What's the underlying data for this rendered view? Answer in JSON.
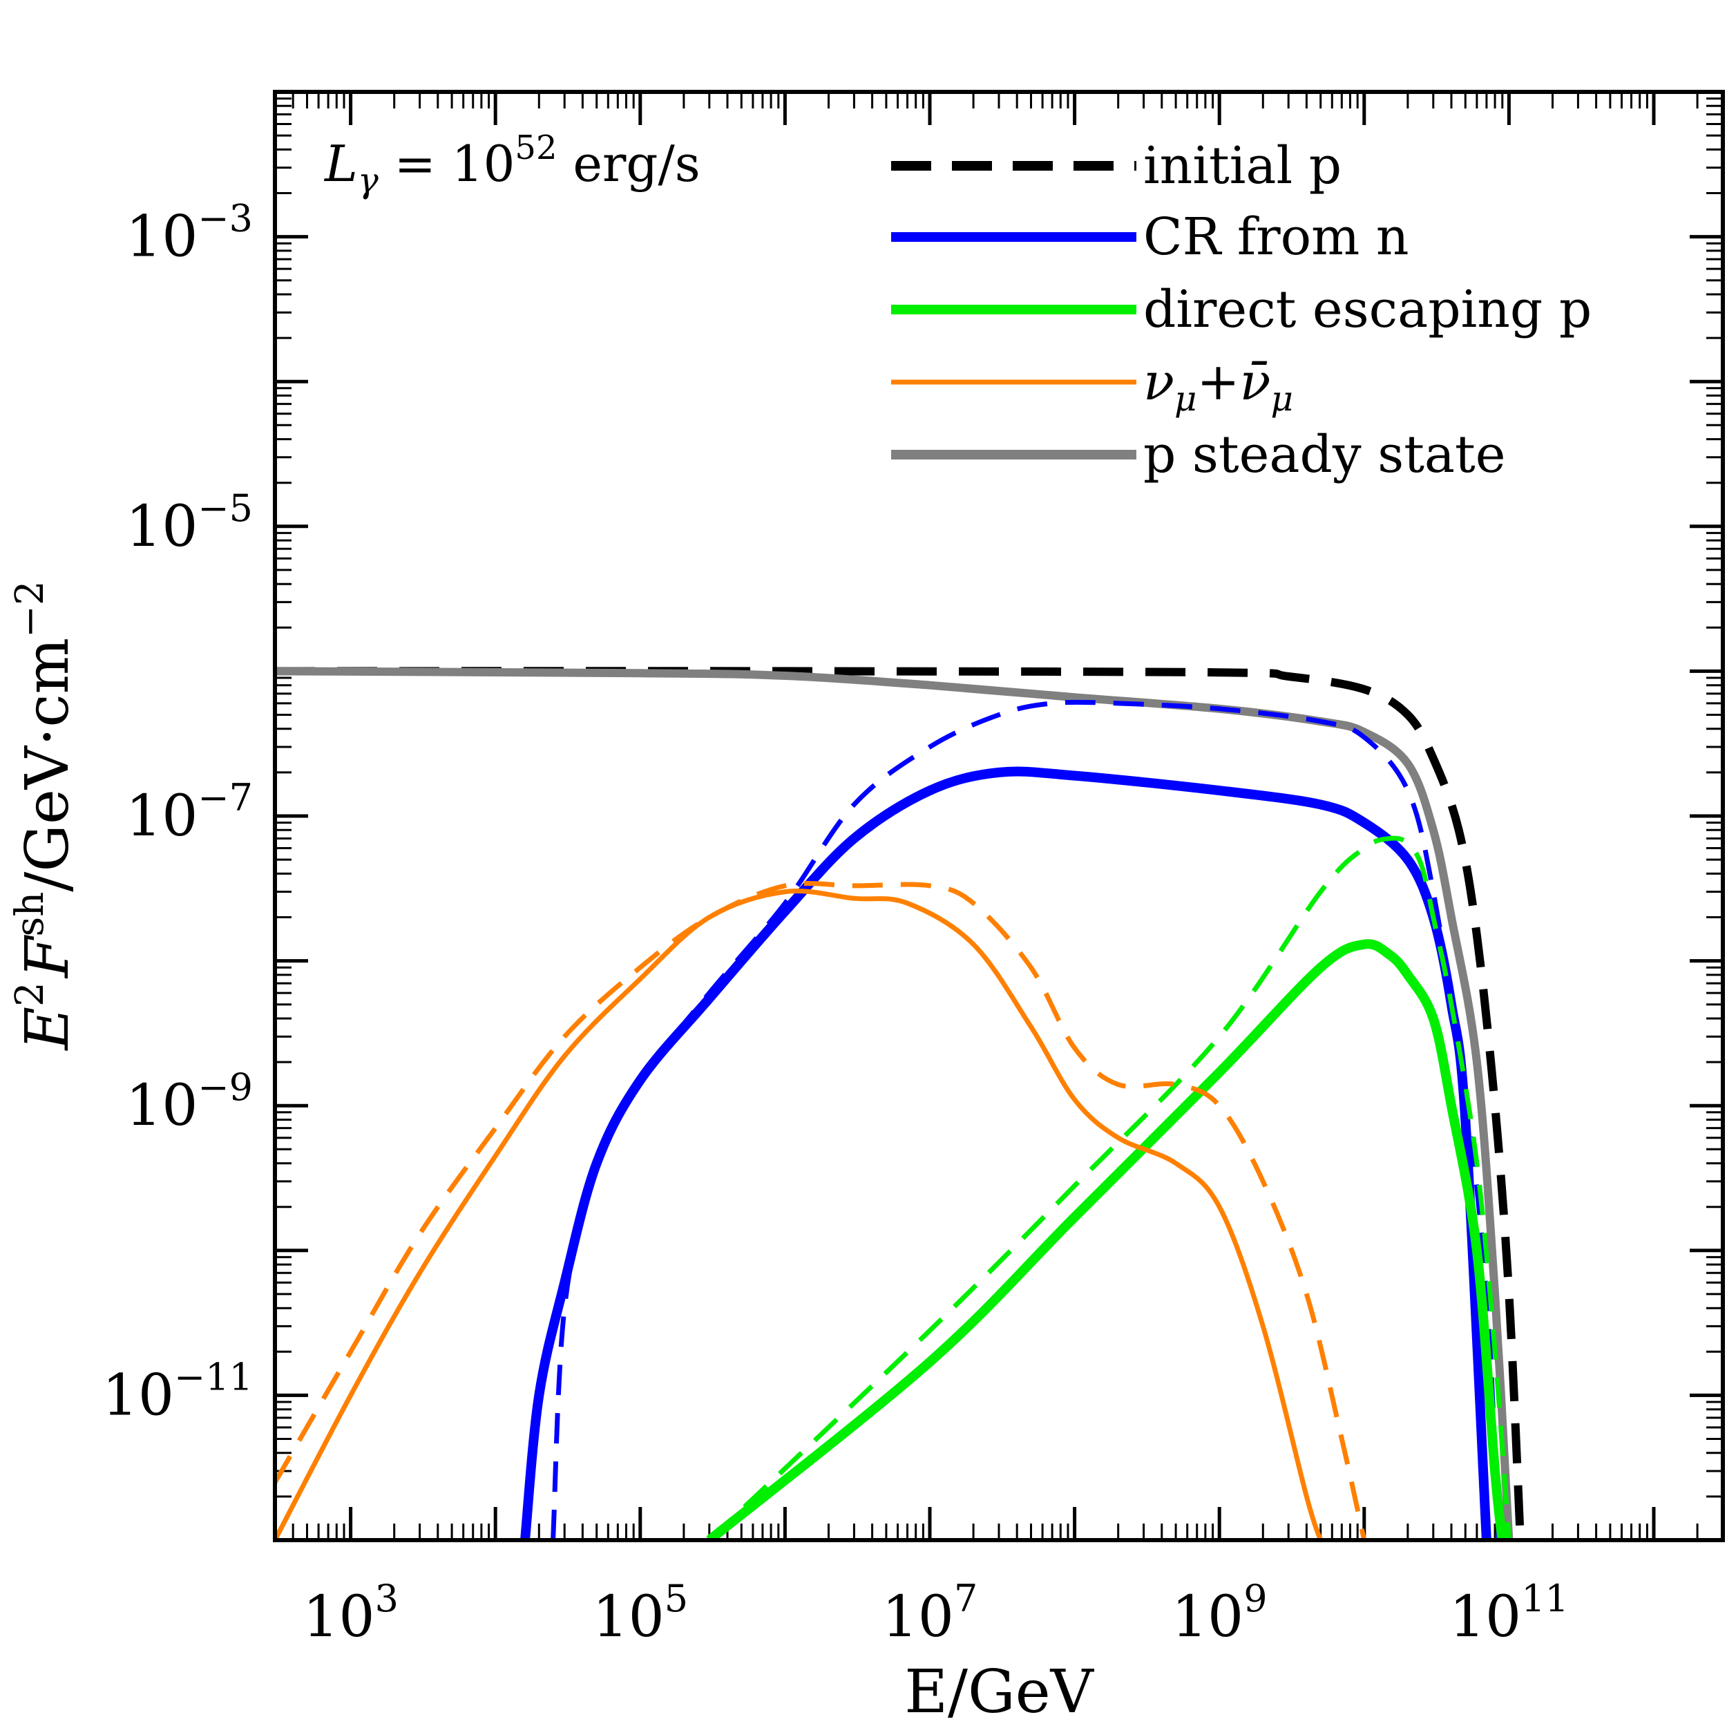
{
  "chart_data": {
    "type": "line",
    "title": "",
    "xlabel": "E/GeV",
    "ylabel_parts": {
      "E": "E",
      "sq": "2",
      "F": "F",
      "sup": "sh",
      "unit": "/GeV·cm",
      "unit_sup": "−2"
    },
    "x_scale": "log",
    "y_scale": "log",
    "xlim": [
      300,
      3000000000000.0
    ],
    "ylim": [
      1e-12,
      0.01
    ],
    "x_ticks": [
      {
        "value": 1000.0,
        "base": "10",
        "exp": "3"
      },
      {
        "value": 100000.0,
        "base": "10",
        "exp": "5"
      },
      {
        "value": 10000000.0,
        "base": "10",
        "exp": "7"
      },
      {
        "value": 1000000000.0,
        "base": "10",
        "exp": "9"
      },
      {
        "value": 100000000000.0,
        "base": "10",
        "exp": "11"
      }
    ],
    "y_ticks": [
      {
        "value": 0.001,
        "base": "10",
        "exp": "−3"
      },
      {
        "value": 1e-05,
        "base": "10",
        "exp": "−5"
      },
      {
        "value": 1e-07,
        "base": "10",
        "exp": "−7"
      },
      {
        "value": 1e-09,
        "base": "10",
        "exp": "−9"
      },
      {
        "value": 1e-11,
        "base": "10",
        "exp": "−11"
      }
    ],
    "annotation": {
      "L": "L",
      "sub": "γ",
      "eq": " = 10",
      "exp": "52",
      "unit": " erg/s"
    },
    "legend": [
      {
        "label": "initial p",
        "color": "#000000",
        "dashed": true,
        "thick": true
      },
      {
        "label": "CR from n",
        "color": "#0000ff",
        "dashed": false,
        "thick": true
      },
      {
        "label": "direct escaping p",
        "color": "#00ee00",
        "dashed": false,
        "thick": true
      },
      {
        "label_parts": [
          "ν",
          "μ",
          "+",
          "ν̄",
          "μ"
        ],
        "color": "#ff8000",
        "dashed": false,
        "thick": false
      },
      {
        "label": "p steady state",
        "color": "#808080",
        "dashed": false,
        "thick": true
      }
    ],
    "series": [
      {
        "name": "initial p",
        "color": "#000000",
        "dash": true,
        "width": 12,
        "points": [
          [
            300,
            1e-06
          ],
          [
            1000000.0,
            1e-06
          ],
          [
            1000000000.0,
            9.8e-07
          ],
          [
            3000000000.0,
            9.2e-07
          ],
          [
            10000000000.0,
            7.5e-07
          ],
          [
            20000000000.0,
            5e-07
          ],
          [
            30000000000.0,
            2.5e-07
          ],
          [
            45000000000.0,
            8e-08
          ],
          [
            60000000000.0,
            1.5e-08
          ],
          [
            80000000000.0,
            1e-09
          ],
          [
            100000000000.0,
            5e-11
          ],
          [
            120000000000.0,
            1e-12
          ]
        ]
      },
      {
        "name": "p steady state",
        "color": "#808080",
        "dash": false,
        "width": 12,
        "points": [
          [
            300,
            1e-06
          ],
          [
            100000.0,
            9.7e-07
          ],
          [
            1000000.0,
            9.3e-07
          ],
          [
            10000000.0,
            8e-07
          ],
          [
            100000000.0,
            6.6e-07
          ],
          [
            1000000000.0,
            5.5e-07
          ],
          [
            5000000000.0,
            4.5e-07
          ],
          [
            10000000000.0,
            3.8e-07
          ],
          [
            20000000000.0,
            2.3e-07
          ],
          [
            30000000000.0,
            8e-08
          ],
          [
            40000000000.0,
            2e-08
          ],
          [
            60000000000.0,
            2e-09
          ],
          [
            80000000000.0,
            5e-11
          ],
          [
            100000000000.0,
            1e-12
          ]
        ]
      },
      {
        "name": "CR from n (dashed)",
        "color": "#0000ff",
        "dash": true,
        "width": 7,
        "points": [
          [
            25000.0,
            1e-12
          ],
          [
            30000.0,
            4e-11
          ],
          [
            50000.0,
            4e-10
          ],
          [
            100000.0,
            1.5e-09
          ],
          [
            300000.0,
            6e-09
          ],
          [
            1000000.0,
            2.5e-08
          ],
          [
            3000000.0,
            1.2e-07
          ],
          [
            10000000.0,
            3e-07
          ],
          [
            30000000.0,
            5e-07
          ],
          [
            70000000.0,
            6e-07
          ],
          [
            200000000.0,
            6e-07
          ],
          [
            1000000000.0,
            5.5e-07
          ],
          [
            5000000000.0,
            4.5e-07
          ],
          [
            10000000000.0,
            3.5e-07
          ],
          [
            20000000000.0,
            1.5e-07
          ],
          [
            30000000000.0,
            3e-08
          ],
          [
            50000000000.0,
            1.2e-09
          ],
          [
            70000000000.0,
            5e-11
          ],
          [
            85000000000.0,
            1e-12
          ]
        ]
      },
      {
        "name": "CR from n",
        "color": "#0000ff",
        "dash": false,
        "width": 14,
        "points": [
          [
            16000.0,
            1e-12
          ],
          [
            20000.0,
            1e-11
          ],
          [
            30000.0,
            6e-11
          ],
          [
            50000.0,
            4e-10
          ],
          [
            100000.0,
            1.5e-09
          ],
          [
            300000.0,
            5.5e-09
          ],
          [
            1000000.0,
            2.2e-08
          ],
          [
            3000000.0,
            7e-08
          ],
          [
            10000000.0,
            1.5e-07
          ],
          [
            30000000.0,
            2e-07
          ],
          [
            100000000.0,
            1.9e-07
          ],
          [
            1000000000.0,
            1.5e-07
          ],
          [
            5000000000.0,
            1.2e-07
          ],
          [
            10000000000.0,
            9e-08
          ],
          [
            20000000000.0,
            5e-08
          ],
          [
            30000000000.0,
            2e-08
          ],
          [
            40000000000.0,
            5e-09
          ],
          [
            50000000000.0,
            8e-10
          ],
          [
            70000000000.0,
            1e-12
          ]
        ]
      },
      {
        "name": "direct escaping p (dashed)",
        "color": "#00ee00",
        "dash": true,
        "width": 7,
        "points": [
          [
            300000.0,
            1e-12
          ],
          [
            10000000.0,
            2.8e-11
          ],
          [
            100000000.0,
            2.8e-10
          ],
          [
            1000000000.0,
            3e-09
          ],
          [
            5000000000.0,
            3e-08
          ],
          [
            10000000000.0,
            6e-08
          ],
          [
            15000000000.0,
            7e-08
          ],
          [
            20000000000.0,
            6.5e-08
          ],
          [
            25000000000.0,
            4.5e-08
          ],
          [
            30000000000.0,
            2e-08
          ],
          [
            40000000000.0,
            5e-09
          ],
          [
            60000000000.0,
            4e-10
          ],
          [
            80000000000.0,
            2e-11
          ],
          [
            100000000000.0,
            1e-12
          ]
        ]
      },
      {
        "name": "direct escaping p",
        "color": "#00ee00",
        "dash": false,
        "width": 14,
        "points": [
          [
            300000.0,
            1e-12
          ],
          [
            10000000.0,
            1.7e-11
          ],
          [
            100000000.0,
            1.7e-10
          ],
          [
            1000000000.0,
            1.7e-09
          ],
          [
            5000000000.0,
            9e-09
          ],
          [
            10000000000.0,
            1.3e-08
          ],
          [
            15000000000.0,
            1.1e-08
          ],
          [
            20000000000.0,
            8e-09
          ],
          [
            30000000000.0,
            4e-09
          ],
          [
            40000000000.0,
            1e-09
          ],
          [
            60000000000.0,
            1e-10
          ],
          [
            80000000000.0,
            3e-12
          ],
          [
            90000000000.0,
            1e-12
          ]
        ]
      },
      {
        "name": "νμ+ν̄μ (dashed)",
        "color": "#ff8000",
        "dash": true,
        "width": 7,
        "points": [
          [
            300,
            2.5e-12
          ],
          [
            1000.0,
            2e-11
          ],
          [
            3000.0,
            1.3e-10
          ],
          [
            10000.0,
            7e-10
          ],
          [
            30000.0,
            3e-09
          ],
          [
            100000.0,
            9e-09
          ],
          [
            300000.0,
            2e-08
          ],
          [
            1000000.0,
            3.3e-08
          ],
          [
            3000000.0,
            3.3e-08
          ],
          [
            10000000.0,
            3.3e-08
          ],
          [
            20000000.0,
            2.5e-08
          ],
          [
            50000000.0,
            9e-09
          ],
          [
            100000000.0,
            2.5e-09
          ],
          [
            200000000.0,
            1.4e-09
          ],
          [
            500000000.0,
            1.4e-09
          ],
          [
            1000000000.0,
            1e-09
          ],
          [
            2000000000.0,
            3e-10
          ],
          [
            4000000000.0,
            5e-11
          ],
          [
            7000000000.0,
            5e-12
          ],
          [
            10000000000.0,
            1e-12
          ]
        ]
      },
      {
        "name": "νμ+ν̄μ",
        "color": "#ff8000",
        "dash": false,
        "width": 7,
        "points": [
          [
            300,
            1e-12
          ],
          [
            1000.0,
            1e-11
          ],
          [
            3000.0,
            7e-11
          ],
          [
            10000.0,
            4.5e-10
          ],
          [
            30000.0,
            2.2e-09
          ],
          [
            100000.0,
            7.5e-09
          ],
          [
            300000.0,
            2e-08
          ],
          [
            1000000.0,
            3e-08
          ],
          [
            3000000.0,
            2.7e-08
          ],
          [
            7000000.0,
            2.5e-08
          ],
          [
            20000000.0,
            1.3e-08
          ],
          [
            50000000.0,
            3.5e-09
          ],
          [
            100000000.0,
            1.1e-09
          ],
          [
            200000000.0,
            6e-10
          ],
          [
            500000000.0,
            4e-10
          ],
          [
            1000000000.0,
            2e-10
          ],
          [
            2000000000.0,
            3e-11
          ],
          [
            4000000000.0,
            2e-12
          ],
          [
            5000000000.0,
            1e-12
          ]
        ]
      }
    ]
  }
}
